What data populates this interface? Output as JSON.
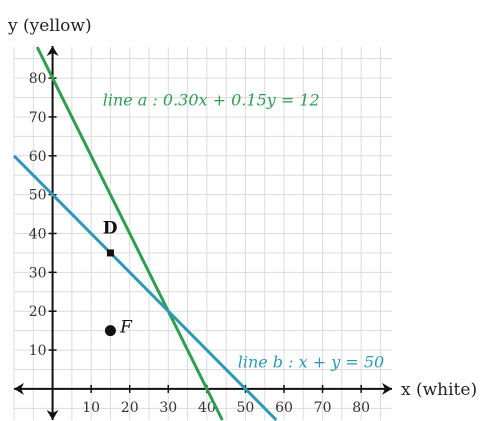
{
  "chart_data": {
    "type": "line",
    "xlabel": "x (white)",
    "ylabel": "y (yellow)",
    "xlim": [
      -10,
      88
    ],
    "ylim": [
      -8,
      88
    ],
    "grid": true,
    "grid_step": 5,
    "x_ticks": [
      10,
      20,
      30,
      40,
      50,
      60,
      70,
      80
    ],
    "y_ticks": [
      10,
      20,
      30,
      40,
      50,
      60,
      70,
      80
    ],
    "series": [
      {
        "label": "line a : 0.30x + 0.15y = 12",
        "color": "#2e9e4f",
        "x": [
          -4,
          44
        ],
        "y": [
          88,
          -8
        ],
        "label_anchor": [
          13,
          73
        ]
      },
      {
        "label": "line b : x + y = 50",
        "color": "#2a9ab8",
        "x": [
          -10,
          58
        ],
        "y": [
          60,
          -8
        ],
        "label_anchor": [
          48,
          5.5
        ]
      }
    ],
    "points": [
      {
        "label": "D",
        "x": 15,
        "y": 35,
        "marker": "square",
        "style": "bold",
        "label_dx": -2,
        "label_dy": 5
      },
      {
        "label": "F",
        "x": 15,
        "y": 15,
        "marker": "circle",
        "style": "italic",
        "label_dx": 2.5,
        "label_dy": -0.5
      }
    ]
  }
}
